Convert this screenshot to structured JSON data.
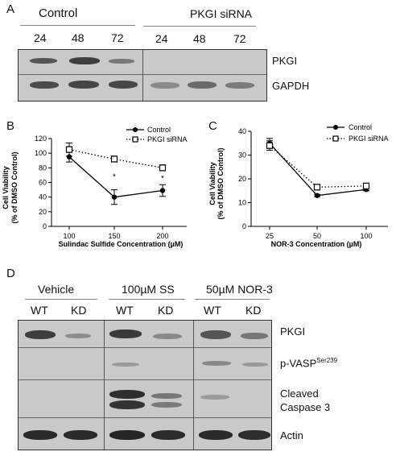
{
  "panelA": {
    "letter": "A",
    "group_labels": [
      "Control",
      "PKGI siRNA"
    ],
    "time_labels": [
      "24",
      "48",
      "72",
      "24",
      "48",
      "72"
    ],
    "row_labels": [
      "PKGI",
      "GAPDH"
    ]
  },
  "panelD": {
    "letter": "D",
    "group_labels": [
      "Vehicle",
      "100µM SS",
      "50µM NOR-3"
    ],
    "lane_labels": [
      "WT",
      "KD",
      "WT",
      "KD",
      "WT",
      "KD"
    ],
    "row_labels": [
      "PKGI",
      "p-VASP",
      "Cleaved",
      "Caspase 3",
      "Actin"
    ],
    "row_label_sup": "Ser239"
  },
  "chart_data": [
    {
      "type": "line",
      "letter": "B",
      "x": [
        100,
        150,
        200
      ],
      "series": [
        {
          "name": "Control",
          "values": [
            95,
            40,
            49
          ],
          "errors": [
            7,
            10,
            8
          ],
          "marker": "filled-circle",
          "line": "solid"
        },
        {
          "name": "PKGI siRNA",
          "values": [
            105,
            92,
            80
          ],
          "errors": [
            9,
            4,
            4
          ],
          "marker": "open-square",
          "line": "dotted"
        }
      ],
      "significance": [
        {
          "x": 150,
          "label": "*"
        },
        {
          "x": 200,
          "label": "*"
        }
      ],
      "xlabel": "Sulindac Sulfide Concentration (µM)",
      "ylabel_line1": "Cell Viability",
      "ylabel_line2": "(% of DMSO Control)",
      "ylim": [
        0,
        120
      ],
      "yticks": [
        0,
        20,
        40,
        60,
        80,
        100,
        120
      ],
      "legend": "top-right",
      "grid": false
    },
    {
      "type": "line",
      "letter": "C",
      "x": [
        25,
        50,
        100
      ],
      "series": [
        {
          "name": "Control",
          "values": [
            35,
            13,
            15.5
          ],
          "errors": [
            2,
            0.5,
            0.5
          ],
          "marker": "filled-circle",
          "line": "solid"
        },
        {
          "name": "PKGI siRNA",
          "values": [
            34,
            16.5,
            17
          ],
          "errors": [
            2,
            0.5,
            0.5
          ],
          "marker": "open-square",
          "line": "dotted"
        }
      ],
      "xlabel": "NOR-3 Concentration (µM)",
      "ylabel_line1": "Cell Viability",
      "ylabel_line2": "(% of DMSO Control)",
      "ylim": [
        0,
        40
      ],
      "yticks": [
        0,
        10,
        20,
        30,
        40
      ],
      "legend": "top-right",
      "grid": false
    }
  ]
}
